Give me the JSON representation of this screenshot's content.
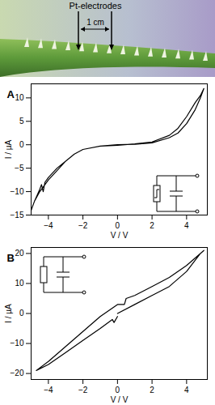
{
  "header": {
    "label": "Pt-electrodes",
    "scale": "1 cm"
  },
  "chart_data": [
    {
      "type": "line",
      "title": "A",
      "x_label": "V / V",
      "y_label": "I / µA",
      "color": "#000000",
      "grid": false,
      "xlim": [
        -5,
        5.2
      ],
      "xticks": [
        -4,
        -2,
        0,
        2,
        4
      ],
      "ylim": [
        -15,
        13
      ],
      "yticks": [
        -15,
        -10,
        -5,
        0,
        5,
        10
      ],
      "x": [
        0,
        1,
        2,
        3,
        3.5,
        4,
        4.5,
        4.8,
        5,
        4.8,
        4.5,
        4,
        3.5,
        3,
        2,
        1,
        0,
        -1,
        -2,
        -2.5,
        -3,
        -3.5,
        -4,
        -4.2,
        -4.3,
        -4.4,
        -4.5,
        -4.8,
        -5,
        -4.8,
        -4.5,
        -4,
        -3.5,
        -3,
        -2.5,
        -2,
        -1,
        0
      ],
      "values": [
        0,
        0.1,
        0.4,
        1.5,
        2.5,
        4.5,
        7.5,
        10,
        12,
        10.5,
        9,
        6,
        3.5,
        2,
        0.6,
        0.2,
        -0.1,
        -0.3,
        -1,
        -2,
        -3.5,
        -5,
        -7,
        -8,
        -10,
        -8.5,
        -9.5,
        -12,
        -14,
        -12,
        -10,
        -7.5,
        -5.5,
        -3.5,
        -2,
        -1,
        -0.3,
        0
      ]
    },
    {
      "type": "line",
      "title": "B",
      "x_label": "V / V",
      "y_label": "I / µA",
      "color": "#000000",
      "grid": false,
      "xlim": [
        -5,
        5.2
      ],
      "xticks": [
        -4,
        -2,
        0,
        2,
        4
      ],
      "ylim": [
        -22,
        22
      ],
      "yticks": [
        -20,
        -10,
        0,
        10,
        20
      ],
      "x": [
        0,
        1,
        2,
        3,
        4,
        4.8,
        5,
        4,
        3,
        2,
        1,
        0.5,
        0.4,
        0,
        -1,
        -2,
        -3,
        -4,
        -4.7,
        -4,
        -3,
        -2,
        -1,
        -0.3,
        -0.2,
        0
      ],
      "values": [
        0,
        3,
        6,
        9,
        14,
        20,
        21,
        16,
        12,
        9,
        6,
        5,
        3,
        3,
        -1,
        -6,
        -11,
        -16,
        -19,
        -17,
        -13,
        -9,
        -5,
        -2,
        -3,
        -1
      ]
    }
  ]
}
